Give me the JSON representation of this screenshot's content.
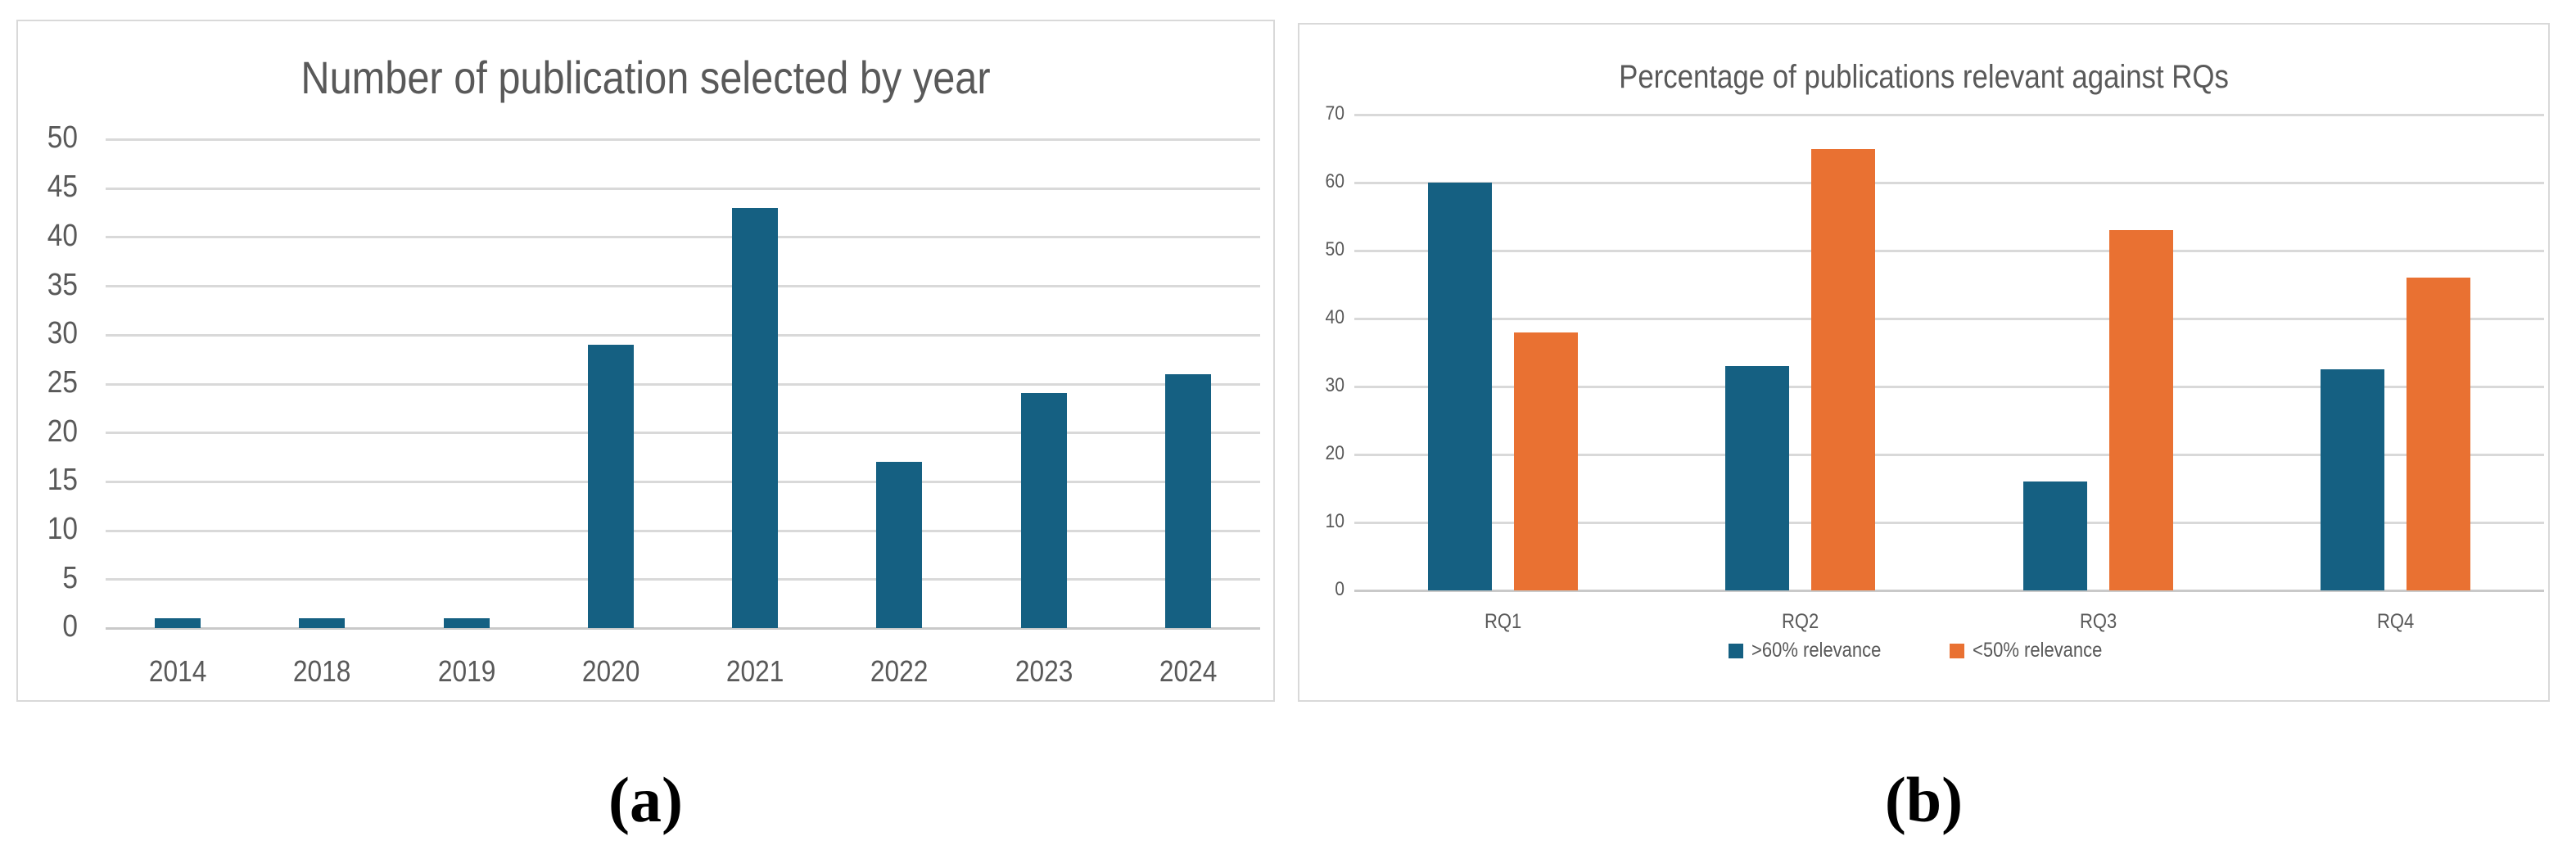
{
  "figure": {
    "caption_a": "(a)",
    "caption_b": "(b)"
  },
  "colors": {
    "teal": "#156082",
    "orange": "#E97132",
    "gridline": "#D9D9D9",
    "axis_line": "#C9C9C9",
    "text_gray": "#595959",
    "panel_border": "#D9D9D9"
  },
  "chart_data": [
    {
      "type": "bar",
      "title": "Number of publication selected by year",
      "categories": [
        "2014",
        "2018",
        "2019",
        "2020",
        "2021",
        "2022",
        "2023",
        "2024"
      ],
      "values": [
        1,
        1,
        1,
        29,
        43,
        17,
        24,
        26
      ],
      "series_color": "#156082",
      "xlabel": "",
      "ylabel": "",
      "ylim": [
        0,
        50
      ],
      "ytick_step": 5,
      "yticks": [
        "0",
        "5",
        "10",
        "15",
        "20",
        "25",
        "30",
        "35",
        "40",
        "45",
        "50"
      ],
      "grid": true,
      "legend": false
    },
    {
      "type": "bar",
      "title": "Percentage of publications relevant against RQs",
      "categories": [
        "RQ1",
        "RQ2",
        "RQ3",
        "RQ4"
      ],
      "series": [
        {
          "name": ">60% relevance",
          "color": "#156082",
          "values": [
            60,
            33,
            16,
            32.5
          ]
        },
        {
          "name": "<50% relevance",
          "color": "#E97132",
          "values": [
            38,
            65,
            53,
            46
          ]
        }
      ],
      "xlabel": "",
      "ylabel": "",
      "ylim": [
        0,
        70
      ],
      "ytick_step": 10,
      "yticks": [
        "0",
        "10",
        "20",
        "30",
        "40",
        "50",
        "60",
        "70"
      ],
      "grid": true,
      "legend": "bottom"
    }
  ]
}
